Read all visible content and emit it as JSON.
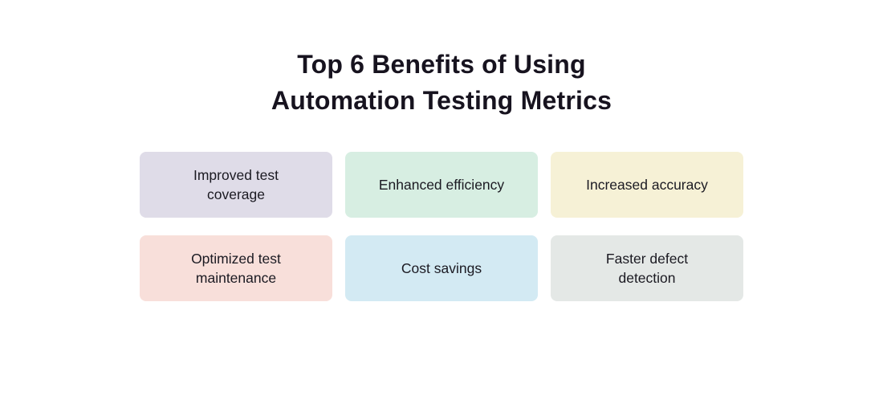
{
  "title": {
    "line1": "Top 6 Benefits of Using",
    "line2": "Automation Testing Metrics"
  },
  "benefits": [
    {
      "label": "Improved test coverage",
      "color": "#dfdce8"
    },
    {
      "label": "Enhanced efficiency",
      "color": "#d7eee2"
    },
    {
      "label": "Increased accuracy",
      "color": "#f6f1d6"
    },
    {
      "label": "Optimized test maintenance",
      "color": "#f8dfda"
    },
    {
      "label": "Cost savings",
      "color": "#d3eaf3"
    },
    {
      "label": "Faster defect detection",
      "color": "#e4e8e6"
    }
  ],
  "colors": {
    "background": "#ffffff",
    "title_text": "#17131f",
    "card_text": "#1b1a22"
  }
}
